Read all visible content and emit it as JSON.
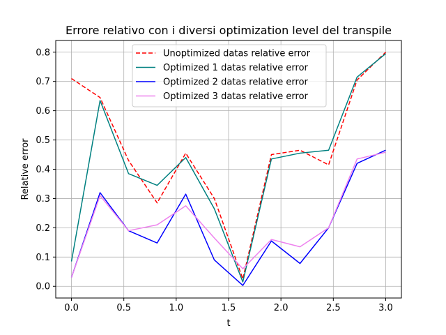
{
  "chart_data": {
    "type": "line",
    "title": "Errore relativo con i diversi optimization level del transpile",
    "xlabel": "t",
    "ylabel": "Relative error",
    "xlim": [
      -0.15,
      3.15
    ],
    "ylim": [
      -0.04,
      0.84
    ],
    "xticks": [
      "0.0",
      "0.5",
      "1.0",
      "1.5",
      "2.0",
      "2.5",
      "3.0"
    ],
    "yticks": [
      "0.0",
      "0.1",
      "0.2",
      "0.3",
      "0.4",
      "0.5",
      "0.6",
      "0.7",
      "0.8"
    ],
    "grid": true,
    "legend_position": "top-center",
    "x": [
      0.0,
      0.273,
      0.545,
      0.818,
      1.091,
      1.364,
      1.636,
      1.909,
      2.182,
      2.455,
      2.727,
      3.0
    ],
    "series": [
      {
        "name": "Unoptimized datas relative error",
        "color": "#ff0000",
        "dashed": true,
        "values": [
          0.71,
          0.645,
          0.43,
          0.285,
          0.455,
          0.3,
          0.025,
          0.45,
          0.465,
          0.415,
          0.705,
          0.8
        ]
      },
      {
        "name": "Optimized 1 datas relative error",
        "color": "#008080",
        "dashed": false,
        "values": [
          0.085,
          0.635,
          0.385,
          0.345,
          0.44,
          0.265,
          0.015,
          0.435,
          0.455,
          0.465,
          0.715,
          0.795
        ]
      },
      {
        "name": "Optimized 2 datas relative error",
        "color": "#0000ff",
        "dashed": false,
        "values": [
          0.03,
          0.32,
          0.19,
          0.148,
          0.315,
          0.09,
          0.003,
          0.155,
          0.078,
          0.2,
          0.42,
          0.465
        ]
      },
      {
        "name": "Optimized 3 datas relative error",
        "color": "#ee82ee",
        "dashed": false,
        "values": [
          0.03,
          0.31,
          0.19,
          0.21,
          0.275,
          0.165,
          0.06,
          0.16,
          0.135,
          0.2,
          0.435,
          0.458
        ]
      }
    ]
  }
}
